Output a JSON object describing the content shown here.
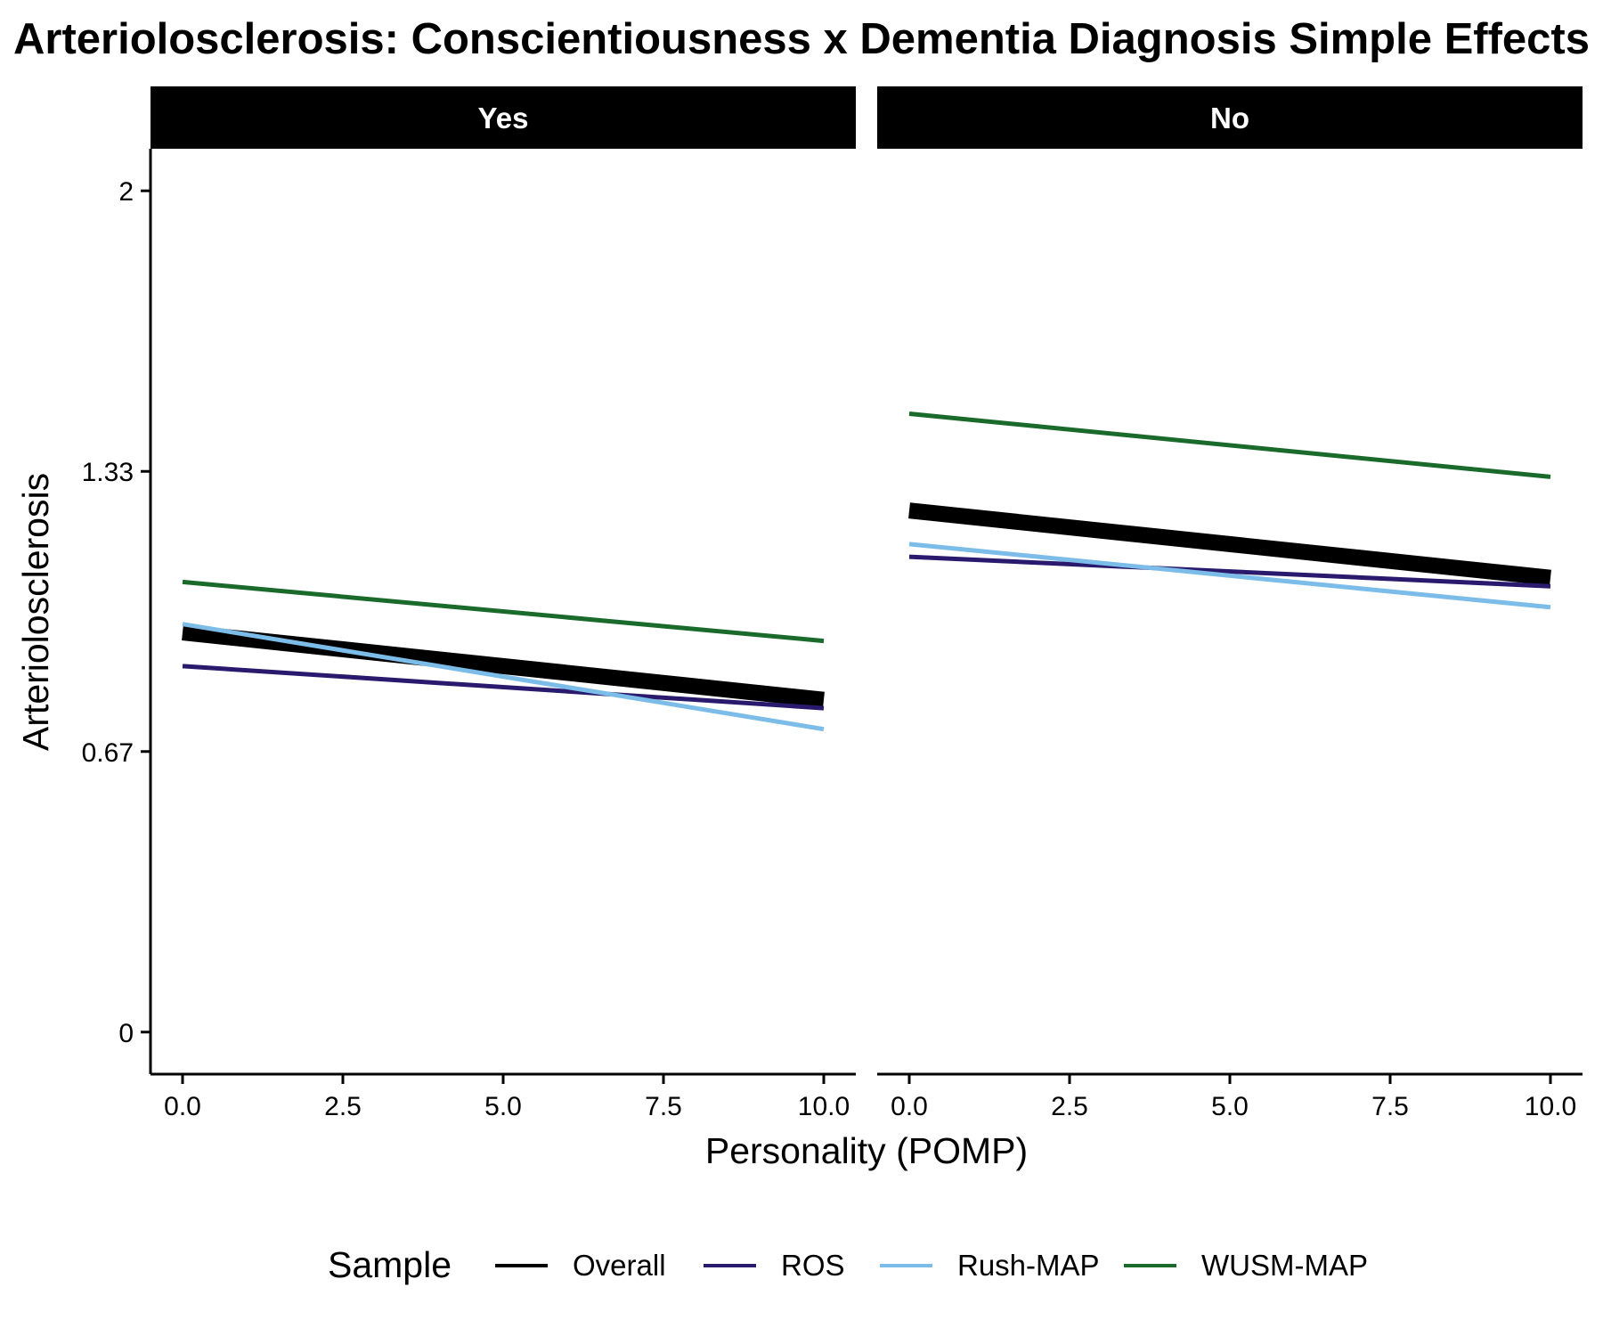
{
  "chart_data": {
    "type": "line",
    "title": "Arteriolosclerosis: Conscientiousness x Dementia Diagnosis Simple Effects",
    "xlabel": "Personality (POMP)",
    "ylabel": "Arteriolosclerosis",
    "x_ticks": [
      "0.0",
      "2.5",
      "5.0",
      "7.5",
      "10.0"
    ],
    "x_tick_values": [
      0,
      2.5,
      5,
      7.5,
      10
    ],
    "y_ticks": [
      "0",
      "0.67",
      "1.33",
      "2"
    ],
    "y_tick_values": [
      0,
      0.667,
      1.333,
      2
    ],
    "xlim": [
      -0.5,
      10.5
    ],
    "ylim": [
      -0.1,
      2.1
    ],
    "grid": false,
    "legend_position": "bottom",
    "legend_title": "Sample",
    "legend_keys": [
      "Overall",
      "ROS",
      "Rush-MAP",
      "WUSM-MAP"
    ],
    "colors": {
      "Overall": "#000000",
      "ROS": "#2a1a6e",
      "Rush-MAP": "#7bbde8",
      "WUSM-MAP": "#1a6b2b"
    },
    "line_widths": {
      "Overall": 18,
      "ROS": 5,
      "Rush-MAP": 5,
      "WUSM-MAP": 5
    },
    "panels": [
      {
        "facet": "Yes",
        "series": [
          {
            "name": "Overall",
            "x": [
              0,
              10
            ],
            "y": [
              0.95,
              0.79
            ]
          },
          {
            "name": "ROS",
            "x": [
              0,
              10
            ],
            "y": [
              0.87,
              0.77
            ]
          },
          {
            "name": "Rush-MAP",
            "x": [
              0,
              10
            ],
            "y": [
              0.97,
              0.72
            ]
          },
          {
            "name": "WUSM-MAP",
            "x": [
              0,
              10
            ],
            "y": [
              1.07,
              0.93
            ]
          }
        ]
      },
      {
        "facet": "No",
        "series": [
          {
            "name": "Overall",
            "x": [
              0,
              10
            ],
            "y": [
              1.24,
              1.08
            ]
          },
          {
            "name": "ROS",
            "x": [
              0,
              10
            ],
            "y": [
              1.13,
              1.06
            ]
          },
          {
            "name": "Rush-MAP",
            "x": [
              0,
              10
            ],
            "y": [
              1.16,
              1.01
            ]
          },
          {
            "name": "WUSM-MAP",
            "x": [
              0,
              10
            ],
            "y": [
              1.47,
              1.32
            ]
          }
        ]
      }
    ]
  }
}
